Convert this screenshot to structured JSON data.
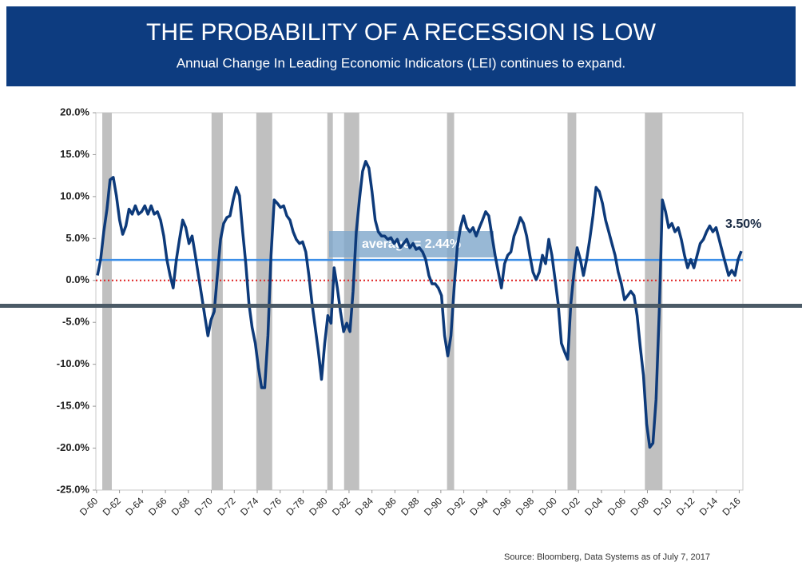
{
  "chart_data": {
    "type": "line",
    "title": "THE PROBABILITY OF A RECESSION IS LOW",
    "subtitle": "Annual Change In Leading Economic Indicators (LEI) continues to expand.",
    "source": "Source:  Bloomberg, Data Systems as of July 7, 2017",
    "color": "#0d3a7a",
    "x": [
      1961,
      1961.275,
      1961.55,
      1961.825,
      1962.1,
      1962.375,
      1962.65,
      1962.925,
      1963.2,
      1963.475,
      1963.75,
      1964.025,
      1964.3,
      1964.575,
      1964.85,
      1965.125,
      1965.4,
      1965.675,
      1965.95,
      1966.225,
      1966.5,
      1966.775,
      1967.05,
      1967.325,
      1967.6,
      1967.875,
      1968.15,
      1968.425,
      1968.7,
      1968.975,
      1969.25,
      1969.525,
      1969.8,
      1970.075,
      1970.35,
      1970.625,
      1970.9,
      1971.175,
      1971.45,
      1971.725,
      1972,
      1972.275,
      1972.55,
      1972.825,
      1973.1,
      1973.375,
      1973.65,
      1973.925,
      1974.2,
      1974.475,
      1974.75,
      1975.025,
      1975.3,
      1975.575,
      1975.85,
      1976.125,
      1976.4,
      1976.675,
      1976.95,
      1977.225,
      1977.5,
      1977.775,
      1978.05,
      1978.325,
      1978.6,
      1978.875,
      1979.15,
      1979.425,
      1979.7,
      1979.975,
      1980.25,
      1980.525,
      1980.8,
      1981.075,
      1981.35,
      1981.625,
      1981.9,
      1982.175,
      1982.45,
      1982.725,
      1983,
      1983.275,
      1983.55,
      1983.825,
      1984.1,
      1984.375,
      1984.65,
      1984.925,
      1985.2,
      1985.475,
      1985.75,
      1986.025,
      1986.3,
      1986.575,
      1986.85,
      1987.125,
      1987.4,
      1987.675,
      1987.95,
      1988.225,
      1988.5,
      1988.775,
      1989.05,
      1989.325,
      1989.6,
      1989.875,
      1990.15,
      1990.425,
      1990.7,
      1990.975,
      1991.25,
      1991.525,
      1991.8,
      1992.075,
      1992.35,
      1992.625,
      1992.9,
      1993.175,
      1993.45,
      1993.725,
      1994,
      1994.275,
      1994.55,
      1994.825,
      1995.1,
      1995.375,
      1995.65,
      1995.925,
      1996.2,
      1996.475,
      1996.75,
      1997.025,
      1997.3,
      1997.575,
      1997.85,
      1998.125,
      1998.4,
      1998.675,
      1998.95,
      1999.225,
      1999.5,
      1999.775,
      2000.05,
      2000.325,
      2000.6,
      2000.875,
      2001.15,
      2001.425,
      2001.7,
      2001.975,
      2002.25,
      2002.525,
      2002.8,
      2003.075,
      2003.35,
      2003.625,
      2003.9,
      2004.175,
      2004.45,
      2004.725,
      2005,
      2005.275,
      2005.55,
      2005.825,
      2006.1,
      2006.375,
      2006.65,
      2006.925,
      2007.2,
      2007.475,
      2007.75,
      2008.025,
      2008.3,
      2008.575,
      2008.85,
      2009.125,
      2009.4,
      2009.675,
      2009.95,
      2010.225,
      2010.5,
      2010.775,
      2011.05,
      2011.325,
      2011.6,
      2011.875,
      2012.15,
      2012.425,
      2012.7,
      2012.975,
      2013.25,
      2013.525,
      2013.8,
      2014.075,
      2014.35,
      2014.625,
      2014.9,
      2015.175,
      2015.45,
      2015.725,
      2016,
      2016.275,
      2016.55,
      2016.825,
      2017.1
    ],
    "values": [
      0.6,
      2.5,
      5.8,
      8.5,
      12.0,
      12.3,
      10.1,
      7.2,
      5.5,
      6.5,
      8.5,
      7.9,
      8.9,
      7.9,
      8.2,
      8.9,
      7.9,
      8.9,
      7.9,
      8.2,
      7.2,
      5.3,
      2.5,
      0.6,
      -0.9,
      2.5,
      4.9,
      7.2,
      6.3,
      4.4,
      5.3,
      3.0,
      0.6,
      -1.8,
      -4.2,
      -6.6,
      -4.7,
      -3.7,
      0.6,
      4.9,
      6.8,
      7.5,
      7.7,
      9.6,
      11.1,
      10.1,
      5.8,
      2.0,
      -2.8,
      -5.6,
      -7.5,
      -10.4,
      -12.8,
      -12.8,
      -6.6,
      3.0,
      9.6,
      9.2,
      8.7,
      8.9,
      7.7,
      7.2,
      5.8,
      4.9,
      4.4,
      4.6,
      3.4,
      0.6,
      -2.8,
      -5.6,
      -8.5,
      -11.8,
      -7.5,
      -4.2,
      -5.1,
      1.5,
      -0.9,
      -3.7,
      -6.1,
      -5.1,
      -6.1,
      -1.3,
      5.8,
      9.6,
      13.0,
      14.2,
      13.4,
      10.6,
      7.2,
      5.8,
      5.3,
      5.3,
      4.9,
      5.1,
      4.4,
      4.9,
      3.9,
      4.4,
      4.9,
      3.9,
      4.4,
      3.7,
      3.9,
      3.4,
      2.5,
      0.6,
      -0.4,
      -0.4,
      -0.9,
      -1.8,
      -6.6,
      -9.0,
      -6.6,
      -0.9,
      3.9,
      6.3,
      7.7,
      6.3,
      5.8,
      6.3,
      5.3,
      6.3,
      7.2,
      8.2,
      7.7,
      5.3,
      3.0,
      1.0,
      -0.9,
      2.0,
      3.0,
      3.4,
      5.3,
      6.3,
      7.5,
      6.8,
      5.3,
      3.0,
      1.0,
      0.1,
      1.0,
      3.0,
      2.0,
      4.9,
      3.0,
      0.1,
      -2.8,
      -7.5,
      -8.5,
      -9.4,
      -2.8,
      1.0,
      3.9,
      2.5,
      0.6,
      2.5,
      4.9,
      7.7,
      11.1,
      10.6,
      9.2,
      7.2,
      5.8,
      4.4,
      3.0,
      1.0,
      -0.4,
      -2.3,
      -1.8,
      -1.3,
      -1.8,
      -4.2,
      -8.0,
      -11.3,
      -17.1,
      -19.9,
      -19.4,
      -14.2,
      -3.7,
      9.6,
      8.2,
      6.3,
      6.8,
      5.8,
      6.3,
      4.9,
      3.0,
      1.5,
      2.5,
      1.5,
      3.0,
      4.4,
      4.9,
      5.8,
      6.5,
      5.8,
      6.3,
      4.9,
      3.4,
      2.0,
      0.6,
      1.2,
      0.6,
      2.5,
      3.5
    ],
    "end_label": "3.50%",
    "xlim": [
      1960.86,
      2017.24
    ],
    "xticks": [
      {
        "value": 1960.92,
        "label": "D-60"
      },
      {
        "value": 1962.92,
        "label": "D-62"
      },
      {
        "value": 1964.92,
        "label": "D-64"
      },
      {
        "value": 1966.92,
        "label": "D-66"
      },
      {
        "value": 1968.92,
        "label": "D-68"
      },
      {
        "value": 1970.92,
        "label": "D-70"
      },
      {
        "value": 1972.92,
        "label": "D-72"
      },
      {
        "value": 1974.92,
        "label": "D-74"
      },
      {
        "value": 1976.92,
        "label": "D-76"
      },
      {
        "value": 1978.92,
        "label": "D-78"
      },
      {
        "value": 1980.92,
        "label": "D-80"
      },
      {
        "value": 1982.92,
        "label": "D-82"
      },
      {
        "value": 1984.92,
        "label": "D-84"
      },
      {
        "value": 1986.92,
        "label": "D-86"
      },
      {
        "value": 1988.92,
        "label": "D-88"
      },
      {
        "value": 1990.92,
        "label": "D-90"
      },
      {
        "value": 1992.92,
        "label": "D-92"
      },
      {
        "value": 1994.92,
        "label": "D-94"
      },
      {
        "value": 1996.92,
        "label": "D-96"
      },
      {
        "value": 1998.92,
        "label": "D-98"
      },
      {
        "value": 2000.92,
        "label": "D-00"
      },
      {
        "value": 2002.92,
        "label": "D-02"
      },
      {
        "value": 2004.92,
        "label": "D-04"
      },
      {
        "value": 2006.92,
        "label": "D-06"
      },
      {
        "value": 2008.92,
        "label": "D-08"
      },
      {
        "value": 2010.92,
        "label": "D-10"
      },
      {
        "value": 2012.92,
        "label": "D-12"
      },
      {
        "value": 2014.92,
        "label": "D-14"
      },
      {
        "value": 2016.92,
        "label": "D-16"
      }
    ],
    "ylim": [
      -25,
      20
    ],
    "yticks": [
      {
        "value": 20,
        "label": "20.0%"
      },
      {
        "value": 15,
        "label": "15.0%"
      },
      {
        "value": 10,
        "label": "10.0%"
      },
      {
        "value": 5,
        "label": "5.0%"
      },
      {
        "value": 0,
        "label": "0.0%"
      },
      {
        "value": -5,
        "label": "-5.0%"
      },
      {
        "value": -10,
        "label": "-10.0%"
      },
      {
        "value": -15,
        "label": "-15.0%"
      },
      {
        "value": -20,
        "label": "-20.0%"
      },
      {
        "value": -25,
        "label": "-25.0%"
      }
    ],
    "recession_bands": [
      [
        1961.42,
        1962.25
      ],
      [
        1970.94,
        1971.92
      ],
      [
        1974.84,
        1976.23
      ],
      [
        1981.03,
        1981.51
      ],
      [
        1982.49,
        1983.81
      ],
      [
        1991.46,
        1992.08
      ],
      [
        2001.96,
        2002.72
      ],
      [
        2008.7,
        2010.23
      ]
    ],
    "band_color": "#c0c0c0",
    "average": {
      "value": 2.44,
      "label": "average = 2.44%"
    },
    "average_color": "#3b8ee8",
    "zero_line_color": "#e02020"
  }
}
